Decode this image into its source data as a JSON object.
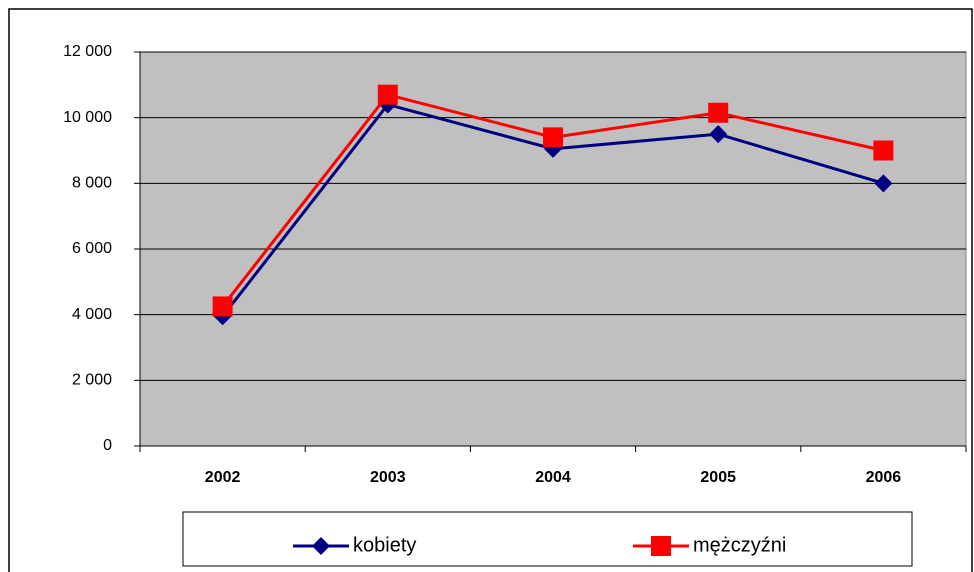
{
  "chart_data": {
    "type": "line",
    "categories": [
      "2002",
      "2003",
      "2004",
      "2005",
      "2006"
    ],
    "series": [
      {
        "name": "kobiety",
        "color": "#000080",
        "marker": "diamond",
        "values": [
          3950,
          10400,
          9050,
          9500,
          8000
        ]
      },
      {
        "name": "mężczyźni",
        "color": "#ff0000",
        "marker": "square",
        "values": [
          4250,
          10700,
          9400,
          10150,
          9000
        ]
      }
    ],
    "ylim": [
      0,
      12000
    ],
    "yticks": [
      0,
      {
        "value": 2000,
        "label": "2 000"
      },
      {
        "value": 4000,
        "label": "4 000"
      },
      {
        "value": 6000,
        "label": "6 000"
      },
      {
        "value": 8000,
        "label": "8 000"
      },
      {
        "value": 10000,
        "label": "10 000"
      },
      {
        "value": 12000,
        "label": "12 000"
      }
    ],
    "grid": true,
    "legend": "bottom",
    "plot_background": "#c0c0c0"
  }
}
